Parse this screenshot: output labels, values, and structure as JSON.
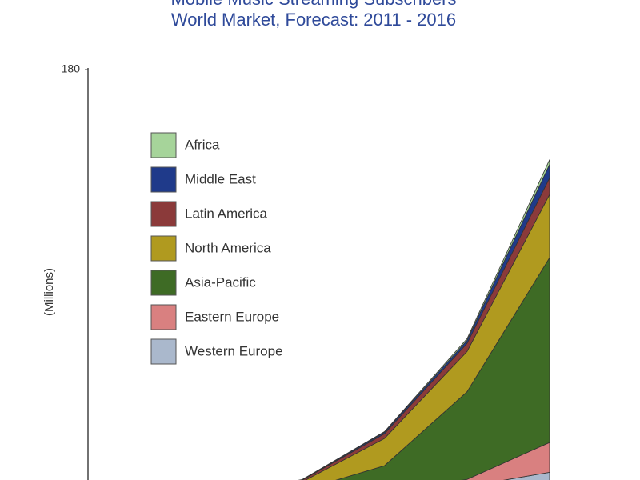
{
  "chart_data": {
    "type": "stacked-area",
    "title": "Mobile Music Streaming Subscribers",
    "subtitle": "World Market, Forecast: 2011 - 2016",
    "y_label": "(Millions)",
    "categories": [
      null,
      null,
      null,
      null,
      null,
      null
    ],
    "ylim": [
      0,
      180
    ],
    "yticks": [
      180
    ],
    "legend": "upper-left",
    "series": [
      {
        "name": "Western Europe",
        "color": "#aab8cc",
        "values": [
          0,
          0,
          0.2,
          1,
          4,
          10
        ]
      },
      {
        "name": "Eastern Europe",
        "color": "#d98080",
        "values": [
          0,
          0,
          0.2,
          0.8,
          3,
          12.6
        ]
      },
      {
        "name": "Asia-Pacific",
        "color": "#3e6b25",
        "values": [
          0,
          0.3,
          2,
          11,
          37,
          78
        ]
      },
      {
        "name": "North America",
        "color": "#b09a1f",
        "values": [
          0,
          0.8,
          3.5,
          11.5,
          17,
          26.7
        ]
      },
      {
        "name": "Latin America",
        "color": "#8b3a3a",
        "values": [
          0,
          0.2,
          0.7,
          2,
          3.4,
          7
        ]
      },
      {
        "name": "Middle East",
        "color": "#1f3a8a",
        "values": [
          0,
          0,
          0.2,
          0.6,
          1.3,
          5.7
        ]
      },
      {
        "name": "Africa",
        "color": "#a6d49a",
        "values": [
          0,
          0,
          0.1,
          0.3,
          0.7,
          2
        ]
      }
    ]
  }
}
